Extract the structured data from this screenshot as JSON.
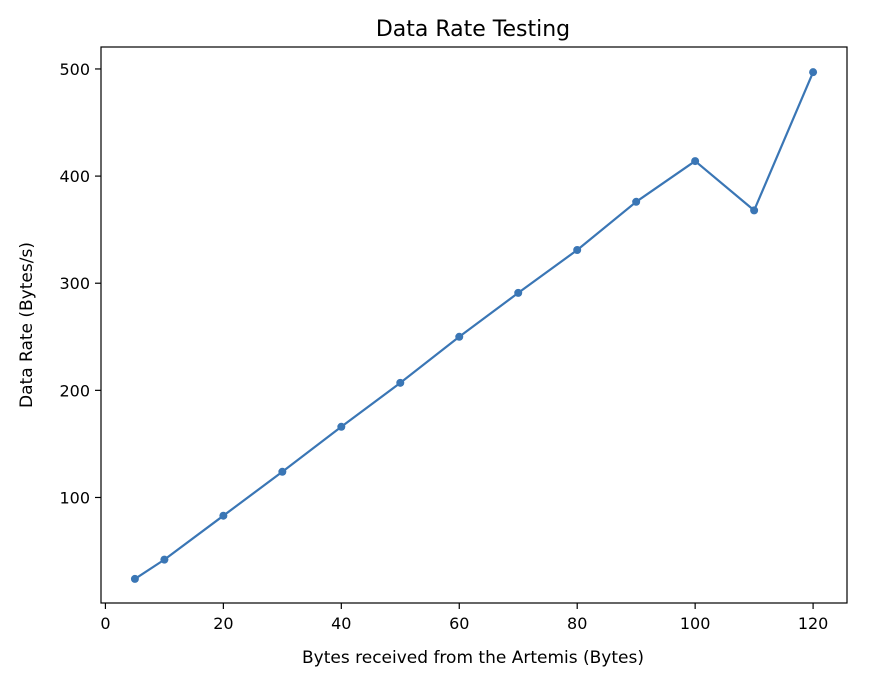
{
  "chart_data": {
    "type": "line",
    "title": "Data Rate Testing",
    "xlabel": "Bytes received from the Artemis (Bytes)",
    "ylabel": "Data Rate (Bytes/s)",
    "xlim": [
      -0.75,
      125.75
    ],
    "ylim": [
      1.5,
      520.5
    ],
    "xticks": [
      0,
      20,
      40,
      60,
      80,
      100,
      120
    ],
    "yticks": [
      100,
      200,
      300,
      400,
      500
    ],
    "grid": false,
    "legend": "none",
    "series": [
      {
        "color": "#3a76b5",
        "marker": "circle",
        "x": [
          5,
          10,
          20,
          30,
          40,
          50,
          60,
          70,
          80,
          90,
          100,
          110,
          120
        ],
        "y": [
          24,
          42,
          83,
          124,
          166,
          207,
          250,
          291,
          331,
          376,
          414,
          368,
          497
        ]
      }
    ]
  }
}
